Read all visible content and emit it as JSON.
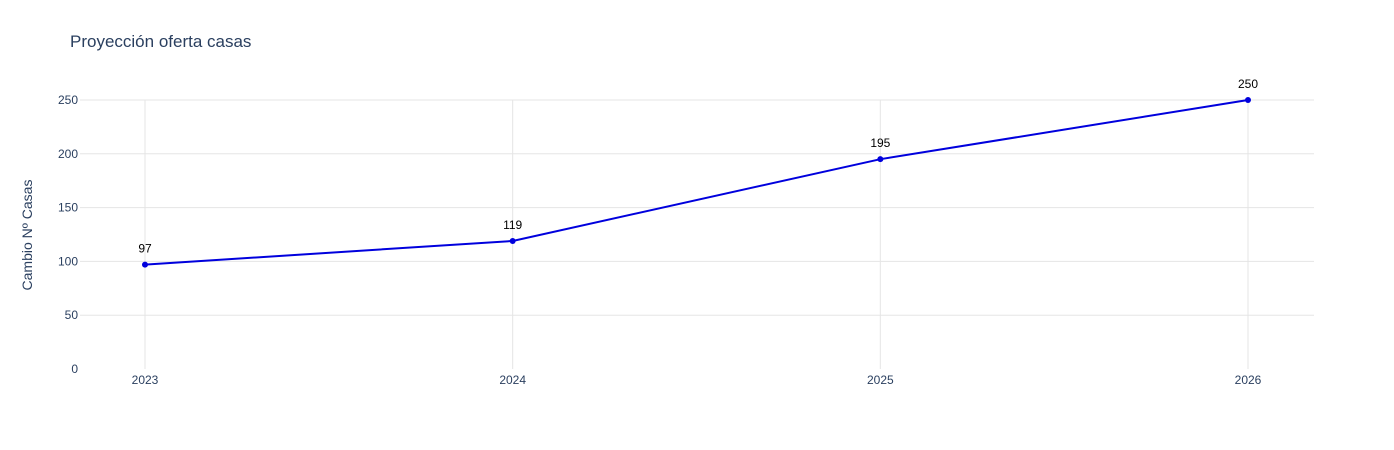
{
  "chart_data": {
    "type": "line",
    "title": "Proyección oferta casas",
    "xlabel": "",
    "ylabel": "Cambio Nº Casas",
    "categories": [
      "2023",
      "2024",
      "2025",
      "2026"
    ],
    "series": [
      {
        "values": [
          97,
          119,
          195,
          250
        ],
        "color": "#0000dd"
      }
    ],
    "data_labels": [
      "97",
      "119",
      "195",
      "250"
    ],
    "ylim": [
      0,
      250
    ],
    "yticks": [
      "0",
      "50",
      "100",
      "150",
      "200",
      "250"
    ],
    "grid": true
  }
}
